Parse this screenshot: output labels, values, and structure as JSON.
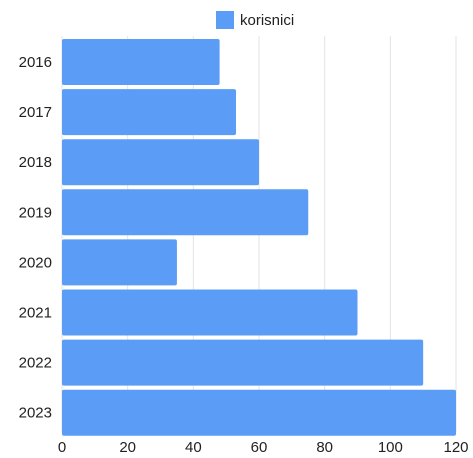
{
  "chart_data": {
    "type": "bar",
    "orientation": "horizontal",
    "categories": [
      "2016",
      "2017",
      "2018",
      "2019",
      "2020",
      "2021",
      "2022",
      "2023"
    ],
    "series": [
      {
        "name": "korisnici",
        "values": [
          48,
          53,
          60,
          75,
          35,
          90,
          110,
          120
        ],
        "color": "#5b9cf6"
      }
    ],
    "xlim": [
      0,
      120
    ],
    "xticks": [
      0,
      20,
      40,
      60,
      80,
      100,
      120
    ],
    "grid": true,
    "legend_position": "top-center"
  }
}
